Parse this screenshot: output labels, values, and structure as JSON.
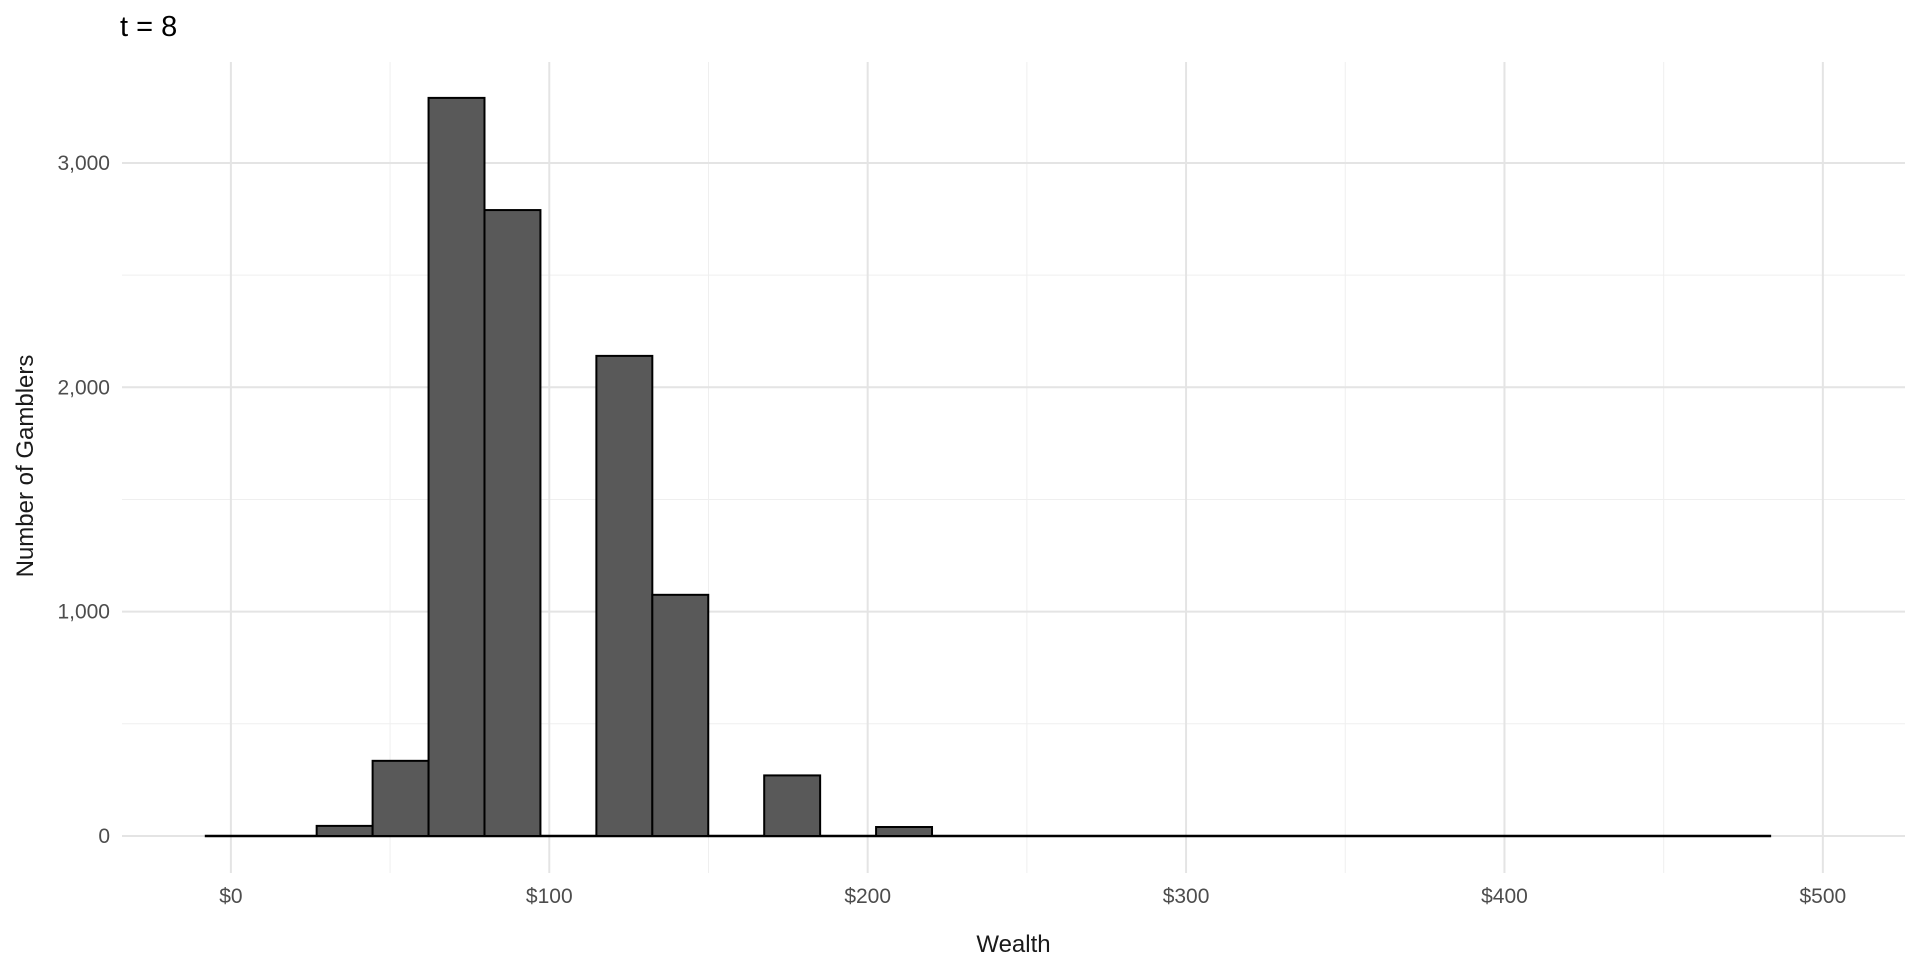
{
  "chart_data": {
    "type": "bar",
    "subtype": "histogram",
    "title": "t = 8",
    "xlabel": "Wealth",
    "ylabel": "Number of Gamblers",
    "xlim": [
      -34.2,
      525.8
    ],
    "ylim": [
      -165,
      3450
    ],
    "grid": true,
    "legend_position": "none",
    "x_major_ticks": [
      {
        "value": 0,
        "label": "$0"
      },
      {
        "value": 100,
        "label": "$100"
      },
      {
        "value": 200,
        "label": "$200"
      },
      {
        "value": 300,
        "label": "$300"
      },
      {
        "value": 400,
        "label": "$400"
      },
      {
        "value": 500,
        "label": "$500"
      }
    ],
    "x_minor_ticks": [
      50,
      150,
      250,
      350,
      450
    ],
    "y_major_ticks": [
      {
        "value": 0,
        "label": "0"
      },
      {
        "value": 1000,
        "label": "1,000"
      },
      {
        "value": 2000,
        "label": "2,000"
      },
      {
        "value": 3000,
        "label": "3,000"
      }
    ],
    "y_minor_ticks": [
      500,
      1500,
      2500
    ],
    "bin_start": -8.2,
    "bin_width": 17.57,
    "bin_counts": [
      0,
      0,
      45,
      335,
      3290,
      2790,
      0,
      2140,
      1075,
      0,
      270,
      0,
      40,
      0,
      0,
      0,
      0,
      0,
      0,
      0,
      0,
      0,
      0,
      0,
      0,
      0,
      0,
      0
    ],
    "colors": {
      "bar_fill": "#595959",
      "bar_stroke": "#000000",
      "grid_major": "#E4E4E4",
      "grid_minor": "#EFEFEF",
      "tick_label": "#4D4D4D",
      "axis_title": "#1A1A1A",
      "title": "#000000",
      "background": "#FFFFFF"
    }
  }
}
